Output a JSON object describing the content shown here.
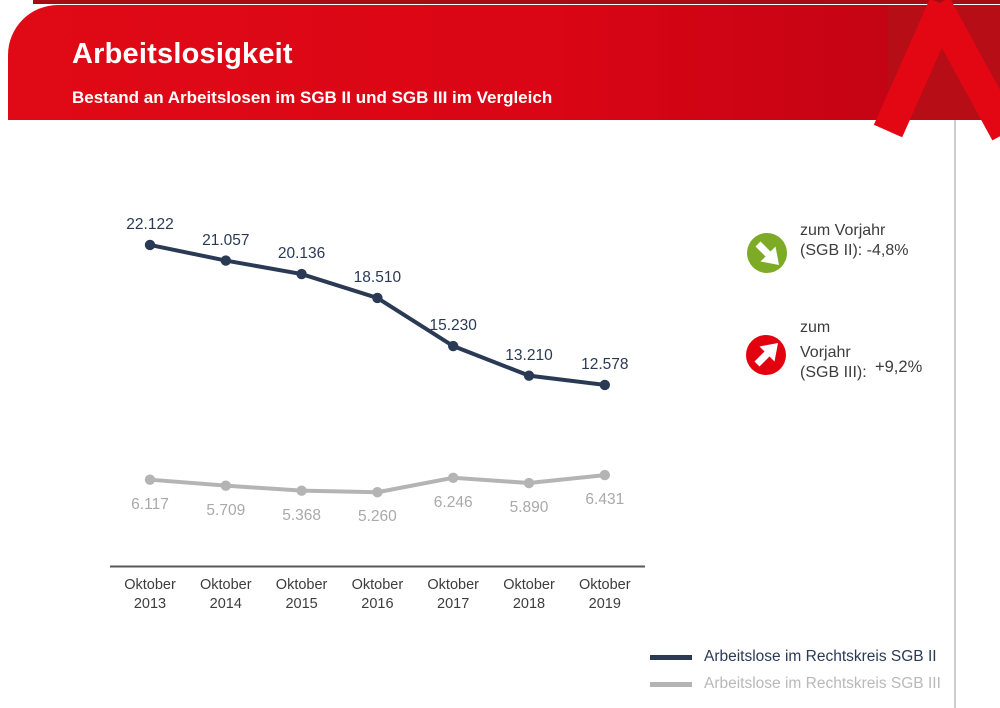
{
  "header": {
    "title": "Arbeitslosigkeit",
    "subtitle": "Bestand an Arbeitslosen im SGB II und SGB III im Vergleich"
  },
  "logo": {
    "name": "Bundesagentur fuer Arbeit A"
  },
  "colors": {
    "banner_red": "#da0515",
    "logo_bg_red": "#b60d17",
    "logo_a_red": "#e30613",
    "sgb2_navy": "#2a3a55",
    "sgb3_gray": "#b4b4b4",
    "sgb3_label_gray": "#a9a9a9",
    "sgb3_legend_gray": "#b9b9b9",
    "axis_gray": "#5a5a5a",
    "green_badge": "#7dab26",
    "red_badge": "#e3000f"
  },
  "chart_data": {
    "type": "line",
    "title": "Bestand an Arbeitslosen im SGB II und SGB III im Vergleich",
    "categories": [
      "Oktober 2013",
      "Oktober 2014",
      "Oktober 2015",
      "Oktober 2016",
      "Oktober 2017",
      "Oktober 2018",
      "Oktober 2019"
    ],
    "series": [
      {
        "name": "Arbeitslose im Rechtskreis SGB II",
        "color": "#2a3a55",
        "label_color": "#2a3a55",
        "values": [
          22122,
          21057,
          20136,
          18510,
          15230,
          13210,
          12578
        ],
        "labels": [
          "22.122",
          "21.057",
          "20.136",
          "18.510",
          "15.230",
          "13.210",
          "12.578"
        ]
      },
      {
        "name": "Arbeitslose im Rechtskreis SGB III",
        "color": "#b4b4b4",
        "label_color": "#a9a9a9",
        "values": [
          6117,
          5709,
          5368,
          5260,
          6246,
          5890,
          6431
        ],
        "labels": [
          "6.117",
          "5.709",
          "5.368",
          "5.260",
          "6.246",
          "5.890",
          "6.431"
        ]
      }
    ],
    "xlabel": "",
    "ylabel": "",
    "ylim": [
      0,
      24000
    ],
    "grid": false,
    "axis_color": "#5a5a5a",
    "legend_position": "bottom-right",
    "marker": "circle",
    "data_labels": true
  },
  "annotations": [
    {
      "icon": "arrow-down-right-circle-icon",
      "circle_color": "#7dab26",
      "line1": "zum Vorjahr",
      "line2": "(SGB II): -4,8%"
    },
    {
      "icon": "arrow-up-right-circle-icon",
      "circle_color": "#e3000f",
      "line1": "zum",
      "line2": "Vorjahr",
      "line3": "(SGB III):",
      "value": "+9,2%"
    }
  ]
}
